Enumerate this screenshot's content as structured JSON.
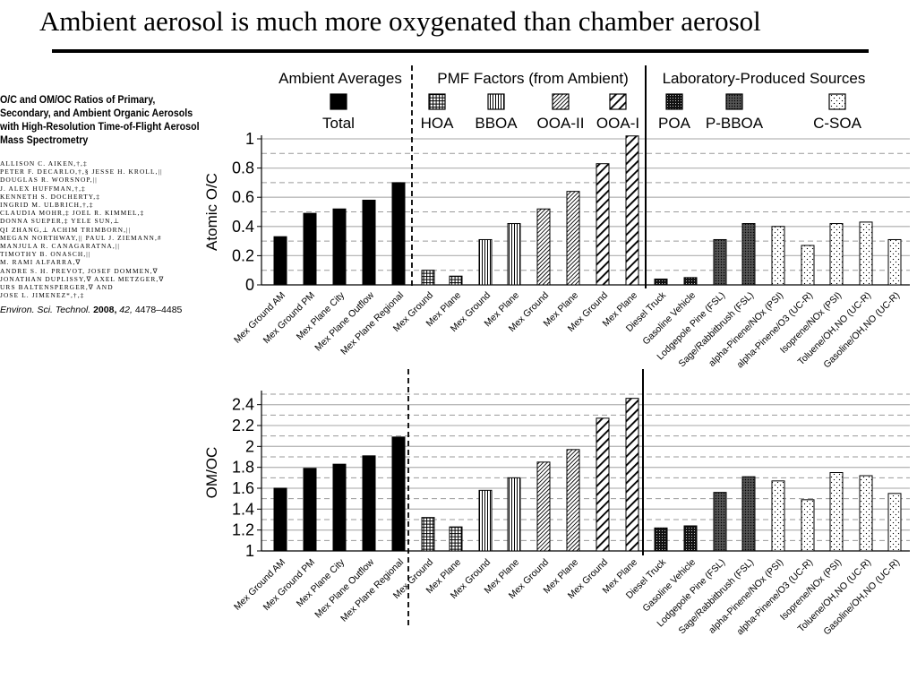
{
  "slide": {
    "title": "Ambient aerosol is much more oxygenated than chamber aerosol"
  },
  "paper": {
    "title": "O/C and OM/OC Ratios of Primary, Secondary, and Ambient Organic Aerosols with High-Resolution Time-of-Flight Aerosol Mass Spectrometry",
    "authors": "ALLISON C. AIKEN,†,‡\nPETER F. DECARLO,†,§ JESSE H. KROLL,||\nDOUGLAS R. WORSNOP,||\nJ. ALEX HUFFMAN,†,‡\nKENNETH S. DOCHERTY,‡\nINGRID M. ULBRICH,†,‡\nCLAUDIA MOHR,‡ JOEL R. KIMMEL,‡\nDONNA SUEPER,‡ YELE SUN,⊥\nQI ZHANG,⊥ ACHIM TRIMBORN,||\nMEGAN NORTHWAY,|| PAUL J. ZIEMANN,#\nMANJULA R. CANAGARATNA,||\nTIMOTHY B. ONASCH,||\nM. RAMI ALFARRA,∇\nANDRE S. H. PREVOT, JOSEF DOMMEN,∇\nJONATHAN DUPLISSY,∇ AXEL METZGER,∇\nURS BALTENSPERGER,∇ AND\nJOSE L. JIMENEZ*,†,‡",
    "journal": "Environ. Sci. Technol.",
    "year": "2008,",
    "volume": "42,",
    "pages": "4478–4485"
  },
  "chart_data": [
    {
      "type": "bar",
      "ylabel": "Atomic O/C",
      "ylim": [
        0,
        1
      ],
      "yticks": [
        "0",
        "0.2",
        "0.4",
        "0.6",
        "0.8",
        "1"
      ],
      "categories": [
        "Mex Ground AM",
        "Mex Ground PM",
        "Mex Plane City",
        "Mex Plane Outflow",
        "Mex Plane Regional",
        "Mex Ground",
        "Mex Plane",
        "Mex Ground",
        "Mex Plane",
        "Mex Ground",
        "Mex Plane",
        "Mex Ground",
        "Mex Plane",
        "Diesel Truck",
        "Gasoline Vehicle",
        "Lodgepole Pine (FSL)",
        "Sage/Rabbitbrush (FSL)",
        "alpha-Pinene/NOx (PSI)",
        "alpha-Pinene/O3 (UC-R)",
        "Isoprene/NOx (PSI)",
        "Toluene/OH,NO (UC-R)",
        "Gasoline/OH,NO (UC-R)"
      ],
      "patterns": [
        "total",
        "total",
        "total",
        "total",
        "total",
        "hoa",
        "hoa",
        "bboa",
        "bboa",
        "ooa2",
        "ooa2",
        "ooa1",
        "ooa1",
        "poa",
        "poa",
        "pbboa",
        "pbboa",
        "csoa",
        "csoa",
        "csoa",
        "csoa",
        "csoa"
      ],
      "values": [
        0.33,
        0.49,
        0.52,
        0.58,
        0.7,
        0.1,
        0.06,
        0.31,
        0.42,
        0.52,
        0.64,
        0.83,
        1.02,
        0.04,
        0.05,
        0.31,
        0.42,
        0.4,
        0.27,
        0.42,
        0.43,
        0.31
      ],
      "grid": true
    },
    {
      "type": "bar",
      "ylabel": "OM/OC",
      "ylim": [
        1,
        2.5
      ],
      "yticks": [
        "1",
        "1.2",
        "1.4",
        "1.6",
        "1.8",
        "2",
        "2.2",
        "2.4"
      ],
      "categories": [
        "Mex Ground AM",
        "Mex Ground PM",
        "Mex Plane City",
        "Mex Plane Outflow",
        "Mex Plane Regional",
        "Mex Ground",
        "Mex Plane",
        "Mex Ground",
        "Mex Plane",
        "Mex Ground",
        "Mex Plane",
        "Mex Ground",
        "Mex Plane",
        "Diesel Truck",
        "Gasoline Vehicle",
        "Lodgepole Pine (FSL)",
        "Sage/Rabbitbrush (FSL)",
        "alpha-Pinene/NOx (PSI)",
        "alpha-Pinene/O3 (UC-R)",
        "Isoprene/NOx (PSI)",
        "Toluene/OH,NO (UC-R)",
        "Gasoline/OH,NO (UC-R)"
      ],
      "patterns": [
        "total",
        "total",
        "total",
        "total",
        "total",
        "hoa",
        "hoa",
        "bboa",
        "bboa",
        "ooa2",
        "ooa2",
        "ooa1",
        "ooa1",
        "poa",
        "poa",
        "pbboa",
        "pbboa",
        "csoa",
        "csoa",
        "csoa",
        "csoa",
        "csoa"
      ],
      "values": [
        1.6,
        1.79,
        1.83,
        1.91,
        2.09,
        1.32,
        1.23,
        1.58,
        1.7,
        1.85,
        1.97,
        2.27,
        2.46,
        1.22,
        1.24,
        1.56,
        1.71,
        1.67,
        1.49,
        1.75,
        1.72,
        1.55
      ],
      "grid": true
    }
  ],
  "legend": {
    "groups": [
      "Ambient Averages",
      "PMF Factors (from Ambient)",
      "Laboratory-Produced Sources"
    ],
    "items": [
      {
        "pattern": "total",
        "label": "Total"
      },
      {
        "pattern": "hoa",
        "label": "HOA"
      },
      {
        "pattern": "bboa",
        "label": "BBOA"
      },
      {
        "pattern": "ooa2",
        "label": "OOA-II"
      },
      {
        "pattern": "ooa1",
        "label": "OOA-I"
      },
      {
        "pattern": "poa",
        "label": "POA"
      },
      {
        "pattern": "pbboa",
        "label": "P-BBOA"
      },
      {
        "pattern": "csoa",
        "label": "C-SOA"
      }
    ]
  }
}
